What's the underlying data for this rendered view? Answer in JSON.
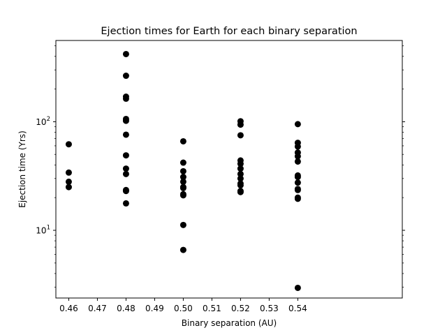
{
  "chart_data": {
    "type": "scatter",
    "title": "Ejection times for Earth for each binary separation",
    "xlabel": "Binary separation (AU)",
    "ylabel": "Ejection time (Yrs)",
    "xlim": [
      0.4555,
      0.5765
    ],
    "ylim": [
      2.38,
      560
    ],
    "yscale": "log",
    "x_ticks": [
      0.46,
      0.47,
      0.48,
      0.49,
      0.5,
      0.51,
      0.52,
      0.53,
      0.54
    ],
    "x_tick_labels": [
      "0.46",
      "0.47",
      "0.48",
      "0.49",
      "0.50",
      "0.51",
      "0.52",
      "0.53",
      "0.54"
    ],
    "y_major_ticks": [
      {
        "value": 10,
        "base": "10",
        "exp": "1"
      },
      {
        "value": 100,
        "base": "10",
        "exp": "2"
      }
    ],
    "grid": false,
    "marker_color": "#000000",
    "series": [
      {
        "points": [
          {
            "x": 0.46,
            "y": 62
          },
          {
            "x": 0.46,
            "y": 34
          },
          {
            "x": 0.46,
            "y": 28
          },
          {
            "x": 0.46,
            "y": 25
          },
          {
            "x": 0.48,
            "y": 420
          },
          {
            "x": 0.48,
            "y": 265
          },
          {
            "x": 0.48,
            "y": 170
          },
          {
            "x": 0.48,
            "y": 163
          },
          {
            "x": 0.48,
            "y": 106
          },
          {
            "x": 0.48,
            "y": 102
          },
          {
            "x": 0.48,
            "y": 76
          },
          {
            "x": 0.48,
            "y": 49
          },
          {
            "x": 0.48,
            "y": 37
          },
          {
            "x": 0.48,
            "y": 33
          },
          {
            "x": 0.48,
            "y": 23.5
          },
          {
            "x": 0.48,
            "y": 23
          },
          {
            "x": 0.48,
            "y": 17.7
          },
          {
            "x": 0.5,
            "y": 66
          },
          {
            "x": 0.5,
            "y": 42
          },
          {
            "x": 0.5,
            "y": 35
          },
          {
            "x": 0.5,
            "y": 31
          },
          {
            "x": 0.5,
            "y": 28
          },
          {
            "x": 0.5,
            "y": 25
          },
          {
            "x": 0.5,
            "y": 24.5
          },
          {
            "x": 0.5,
            "y": 21.5
          },
          {
            "x": 0.5,
            "y": 21
          },
          {
            "x": 0.5,
            "y": 11.2
          },
          {
            "x": 0.5,
            "y": 6.6
          },
          {
            "x": 0.52,
            "y": 101
          },
          {
            "x": 0.52,
            "y": 94
          },
          {
            "x": 0.52,
            "y": 75
          },
          {
            "x": 0.52,
            "y": 44
          },
          {
            "x": 0.52,
            "y": 41
          },
          {
            "x": 0.52,
            "y": 37
          },
          {
            "x": 0.52,
            "y": 33
          },
          {
            "x": 0.52,
            "y": 30
          },
          {
            "x": 0.52,
            "y": 27
          },
          {
            "x": 0.52,
            "y": 26
          },
          {
            "x": 0.52,
            "y": 23
          },
          {
            "x": 0.52,
            "y": 22.5
          },
          {
            "x": 0.54,
            "y": 95
          },
          {
            "x": 0.54,
            "y": 64
          },
          {
            "x": 0.54,
            "y": 59
          },
          {
            "x": 0.54,
            "y": 52
          },
          {
            "x": 0.54,
            "y": 48
          },
          {
            "x": 0.54,
            "y": 43
          },
          {
            "x": 0.54,
            "y": 32
          },
          {
            "x": 0.54,
            "y": 31
          },
          {
            "x": 0.54,
            "y": 27.5
          },
          {
            "x": 0.54,
            "y": 24
          },
          {
            "x": 0.54,
            "y": 23.5
          },
          {
            "x": 0.54,
            "y": 20
          },
          {
            "x": 0.54,
            "y": 19.5
          },
          {
            "x": 0.54,
            "y": 2.95
          }
        ]
      }
    ]
  }
}
